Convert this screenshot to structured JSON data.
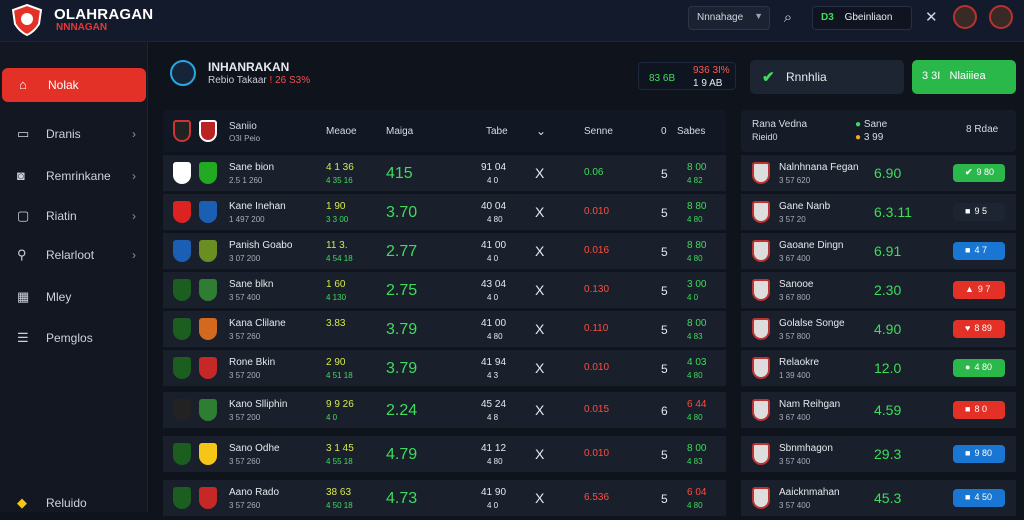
{
  "header": {
    "brand": "OLAHRAGAN",
    "brand_sub": "NNNAGAN",
    "dropdown": "Nnnahage",
    "balance_code": "D3",
    "balance_text": "Gbeinliaon",
    "icons": [
      "shield-logo-icon",
      "chevron-down-icon",
      "search-icon",
      "close-icon",
      "avatar",
      "avatar"
    ]
  },
  "sidebar": {
    "items": [
      {
        "label": "Nolak",
        "icon": "home-icon",
        "active": true,
        "arrow": false
      },
      {
        "label": "Dranis",
        "icon": "card-icon",
        "arrow": true
      },
      {
        "label": "Remrinkane",
        "icon": "camera-icon",
        "arrow": true
      },
      {
        "label": "Riatin",
        "icon": "monitor-icon",
        "arrow": true
      },
      {
        "label": "Relarloot",
        "icon": "pin-icon",
        "arrow": true
      },
      {
        "label": "Mley",
        "icon": "grid-icon",
        "arrow": false
      },
      {
        "label": "Pemglos",
        "icon": "list-icon",
        "arrow": false
      },
      {
        "label": "Reluido",
        "icon": "bell-icon",
        "arrow": false
      }
    ]
  },
  "main": {
    "title": "INHANRAKAN",
    "subtitle": "Rebio Takaar",
    "subtitle_red": "! 26 S3%",
    "live_left": "83 6B",
    "live_top": "936 3I%",
    "live_bottom": "1  9 AB",
    "btn_gray": "Rnnhlia",
    "btn_green": "3  3I",
    "btn_green2": "Nlaiiiea",
    "columns": {
      "match_t1": "Saniio",
      "match_t2": "O3I Peio",
      "c1": "Meaoe",
      "c2": "Maiga",
      "c3": "Tabe",
      "c4": "Senne",
      "c5a": "0",
      "c5b": "Sabes"
    },
    "rows": [
      {
        "t1": "Sane bion",
        "t2": "2.5 1 260",
        "o_top": "4 1 36",
        "o_bot": "4 35 16",
        "main": "415",
        "c3a": "91 04",
        "c3b": "4 0",
        "x": "X",
        "c4": "0.06",
        "c4c": "#3ddc5c",
        "c5": "5",
        "c6a": "8 00",
        "c6b": "4 82"
      },
      {
        "t1": "Kane Inehan",
        "t2": "1 497 200",
        "o_top": "1 90",
        "o_bot": "3 3 00",
        "main": "3.70",
        "c3a": "40 04",
        "c3b": "4 80",
        "x": "X",
        "c4": "0.010",
        "c4c": "#ff4b3e",
        "c5": "5",
        "c6a": "8 80",
        "c6b": "4 80"
      },
      {
        "t1": "Panish Goabo",
        "t2": "3 07 200",
        "o_top": "11 3.",
        "o_bot": "4 54 18",
        "main": "2.77",
        "c3a": "41 00",
        "c3b": "4 0",
        "x": "X",
        "c4": "0.016",
        "c4c": "#ff4b3e",
        "c5": "5",
        "c6a": "8 80",
        "c6b": "4 80"
      },
      {
        "t1": "Sane blkn",
        "t2": "3 57 400",
        "o_top": "1 60",
        "o_bot": "4 130",
        "main": "2.75",
        "c3a": "43 04",
        "c3b": "4 0",
        "x": "X",
        "c4": "0.130",
        "c4c": "#ff4b3e",
        "c5": "5",
        "c6a": "3 00",
        "c6b": "4 0"
      },
      {
        "t1": "Kana Clilane",
        "t2": "3 57 260",
        "o_top": "3.83",
        "o_bot": "",
        "main": "3.79",
        "c3a": "41 00",
        "c3b": "4 80",
        "x": "X",
        "c4": "0.110",
        "c4c": "#ff4b3e",
        "c5": "5",
        "c6a": "8 00",
        "c6b": "4 83"
      },
      {
        "t1": "Rone Bkin",
        "t2": "3 57 200",
        "o_top": "2 90",
        "o_bot": "4 51 18",
        "main": "3.79",
        "c3a": "41 94",
        "c3b": "4 3",
        "x": "X",
        "c4": "0.010",
        "c4c": "#ff4b3e",
        "c5": "5",
        "c6a": "4 03",
        "c6b": "4 80"
      },
      {
        "t1": "Kano Slliphin",
        "t2": "3 57 200",
        "o_top": "9 9 26",
        "o_bot": "4 0",
        "main": "2.24",
        "c3a": "45 24",
        "c3b": "4 8",
        "x": "X",
        "c4": "0.015",
        "c4c": "#ff4b3e",
        "c5": "6",
        "c6a": "6 44",
        "c6b": "4 80"
      },
      {
        "t1": "Sano Odhe",
        "t2": "3 57 260",
        "o_top": "3 1 45",
        "o_bot": "4 55 18",
        "main": "4.79",
        "c3a": "41 12",
        "c3b": "4 80",
        "x": "X",
        "c4": "0.010",
        "c4c": "#ff4b3e",
        "c5": "5",
        "c6a": "8 00",
        "c6b": "4 83"
      },
      {
        "t1": "Aano Rado",
        "t2": "3 57 260",
        "o_top": "38 63",
        "o_bot": "4 50 18",
        "main": "4.73",
        "c3a": "41 90",
        "c3b": "4 0",
        "x": "X",
        "c4": "6.536",
        "c4c": "#ff4b3e",
        "c5": "5",
        "c6a": "6 04",
        "c6b": "4 80"
      }
    ]
  },
  "right": {
    "hdr_t1": "Rana Vedna",
    "hdr_t2": "Rieid0",
    "hdr_mid1": "Sane",
    "hdr_mid2": "3  99",
    "hdr_right": "8  Rdae",
    "rows": [
      {
        "t1": "Nalnhnana Fegan",
        "t2": "3 57 620",
        "odd": "6.90",
        "pill": "#2bb84b",
        "pi": "✔",
        "pv": "9 80"
      },
      {
        "t1": "Gane Nanb",
        "t2": "3 57 20",
        "odd": "6.3.11",
        "pill": "#1d2532",
        "pi": "■",
        "pv": "9 5"
      },
      {
        "t1": "Gaoane Dingn",
        "t2": "3 67 400",
        "odd": "6.91",
        "pill": "#1976d2",
        "pi": "■",
        "pv": "4 7"
      },
      {
        "t1": "Sanooe",
        "t2": "3 67 800",
        "odd": "2.30",
        "pill": "#e43127",
        "pi": "▲",
        "pv": "9 7"
      },
      {
        "t1": "Golalse Songe",
        "t2": "3 57 800",
        "odd": "4.90",
        "pill": "#e43127",
        "pi": "♥",
        "pv": "8 89"
      },
      {
        "t1": "Relaokre",
        "t2": "1 39 400",
        "odd": "12.0",
        "pill": "#2bb84b",
        "pi": "●",
        "pv": "4 80"
      },
      {
        "t1": "Nam Reihgan",
        "t2": "3 67 400",
        "odd": "4.59",
        "pill": "#e43127",
        "pi": "■",
        "pv": "8 0"
      },
      {
        "t1": "Sbnmhagon",
        "t2": "3 57 400",
        "odd": "29.3",
        "pill": "#1976d2",
        "pi": "■",
        "pv": "9 80"
      },
      {
        "t1": "Aaicknmahan",
        "t2": "3 57 400",
        "odd": "45.3",
        "pill": "#1976d2",
        "pi": "■",
        "pv": "4 50"
      }
    ]
  }
}
